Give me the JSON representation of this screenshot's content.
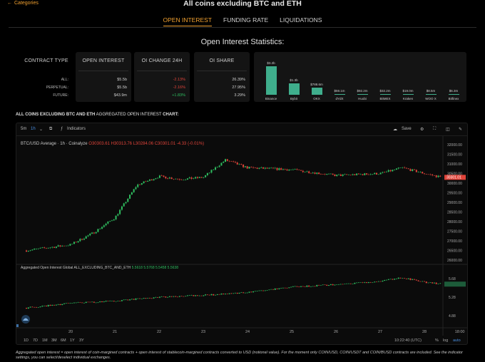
{
  "header": {
    "back_label": "Categories",
    "title": "All coins excluding BTC and ETH"
  },
  "tabs": [
    {
      "label": "OPEN INTEREST",
      "active": true
    },
    {
      "label": "FUNDING RATE",
      "active": false
    },
    {
      "label": "LIQUIDATIONS",
      "active": false
    }
  ],
  "stats": {
    "title": "Open Interest Statistics:",
    "headers": {
      "type": "CONTRACT TYPE",
      "oi": "OPEN INTEREST",
      "change": "OI CHANGE 24H",
      "share": "OI SHARE"
    },
    "rows": [
      {
        "type": "ALL:",
        "oi": "$5.5b",
        "change": "-2.13%",
        "share": "26.39%"
      },
      {
        "type": "PERPETUAL:",
        "oi": "$5.5b",
        "change": "-2.16%",
        "share": "27.95%"
      },
      {
        "type": "FUTURE:",
        "oi": "$43.9m",
        "change": "+1.83%",
        "share": "3.29%"
      }
    ]
  },
  "exchanges": [
    {
      "name": "Binance",
      "label": "$3.2b",
      "value": 3.2
    },
    {
      "name": "Bybit",
      "label": "$1.3b",
      "value": 1.3
    },
    {
      "name": "OKX",
      "label": "$788.6m",
      "value": 0.7886
    },
    {
      "name": "dYdX",
      "label": "$59.1m",
      "value": 0.0591
    },
    {
      "name": "Huobi",
      "label": "$92.2m",
      "value": 0.0922
    },
    {
      "name": "BitMEX",
      "label": "$32.2m",
      "value": 0.0322
    },
    {
      "name": "Kraken",
      "label": "$19.0m",
      "value": 0.019
    },
    {
      "name": "WOO X",
      "label": "$8.5m",
      "value": 0.0085
    },
    {
      "name": "Bitfinex",
      "label": "$6.3m",
      "value": 0.0063
    }
  ],
  "chart_section": {
    "label_bold": "ALL COINS EXCLUDING BTC AND ETH",
    "label_mid": " AGGREGATED OPEN INTEREST ",
    "label_bold2": "CHART:"
  },
  "toolbar": {
    "interval": "5m",
    "interval_active": "1h",
    "indicators": "Indicators",
    "save": "Save"
  },
  "legend": {
    "main": "BTC/USD Average · 1h · Coinalyze",
    "ohlc": "O30303.61 H30313.76 L30284.06 C30301.01 -4.33 (-0.01%)",
    "sub": "Aggregated Open Interest Global ALL_EXCLUDING_BTC_AND_ETH",
    "sub_values": "5.5618 5.5768 5.5458 5.5638"
  },
  "bottom_bar": {
    "ranges": [
      "1D",
      "7D",
      "1M",
      "3M",
      "6M",
      "1Y",
      "3Y"
    ],
    "time": "10:22:40 (UTC)",
    "pct": "%",
    "log": "log",
    "auto": "auto",
    "tv_badge": "10"
  },
  "chart_data": {
    "type": "candlestick",
    "x_tick_labels": [
      "20",
      "21",
      "22",
      "23",
      "24",
      "25",
      "26",
      "27",
      "28",
      "18:00"
    ],
    "price_axis": [
      "32000.00",
      "31500.00",
      "31000.00",
      "30500.00",
      "30000.00",
      "29500.00",
      "29000.00",
      "28500.00",
      "28000.00",
      "27500.00",
      "27000.00",
      "26500.00",
      "26000.00"
    ],
    "price_ylim": [
      26000,
      32000
    ],
    "last_price_label": "30301.01",
    "price_path": [
      {
        "day": "19",
        "price": 26500
      },
      {
        "day": "20",
        "price": 26800
      },
      {
        "day": "20.5",
        "price": 27400
      },
      {
        "day": "21",
        "price": 28200
      },
      {
        "day": "21.5",
        "price": 29900
      },
      {
        "day": "22",
        "price": 30350
      },
      {
        "day": "22.5",
        "price": 30200
      },
      {
        "day": "23",
        "price": 30300
      },
      {
        "day": "23.5",
        "price": 31200
      },
      {
        "day": "24",
        "price": 30800
      },
      {
        "day": "25",
        "price": 30700
      },
      {
        "day": "26",
        "price": 30400
      },
      {
        "day": "27",
        "price": 30500
      },
      {
        "day": "27.5",
        "price": 30800
      },
      {
        "day": "28",
        "price": 30500
      },
      {
        "day": "28.4",
        "price": 30301
      }
    ],
    "oi_axis": [
      "5.68",
      "5.28",
      "4.88"
    ],
    "oi_ylim": [
      4.7,
      5.8
    ],
    "oi_last_label": "5.56",
    "oi_path": [
      {
        "day": "19",
        "oi": 5.05
      },
      {
        "day": "20",
        "oi": 5.15
      },
      {
        "day": "21",
        "oi": 5.2
      },
      {
        "day": "22",
        "oi": 5.28
      },
      {
        "day": "23",
        "oi": 5.32
      },
      {
        "day": "24",
        "oi": 5.38
      },
      {
        "day": "25",
        "oi": 5.5
      },
      {
        "day": "26",
        "oi": 5.55
      },
      {
        "day": "27",
        "oi": 5.62
      },
      {
        "day": "27.5",
        "oi": 5.7
      },
      {
        "day": "28",
        "oi": 5.6
      },
      {
        "day": "28.4",
        "oi": 5.56
      }
    ]
  },
  "colors": {
    "accent": "#f0a030",
    "up": "#2fbf60",
    "down": "#e0443a",
    "bar": "#3fae8c"
  },
  "footnote": "Aggregated open interest = open interest of coin-margined contracts + open interest of stablecoin-margined contracts converted to USD (notional value). For the moment only COIN/USD, COIN/USDT and COIN/BUSD contracts are included. See the indicator settings, you can select/deselect individual exchanges."
}
